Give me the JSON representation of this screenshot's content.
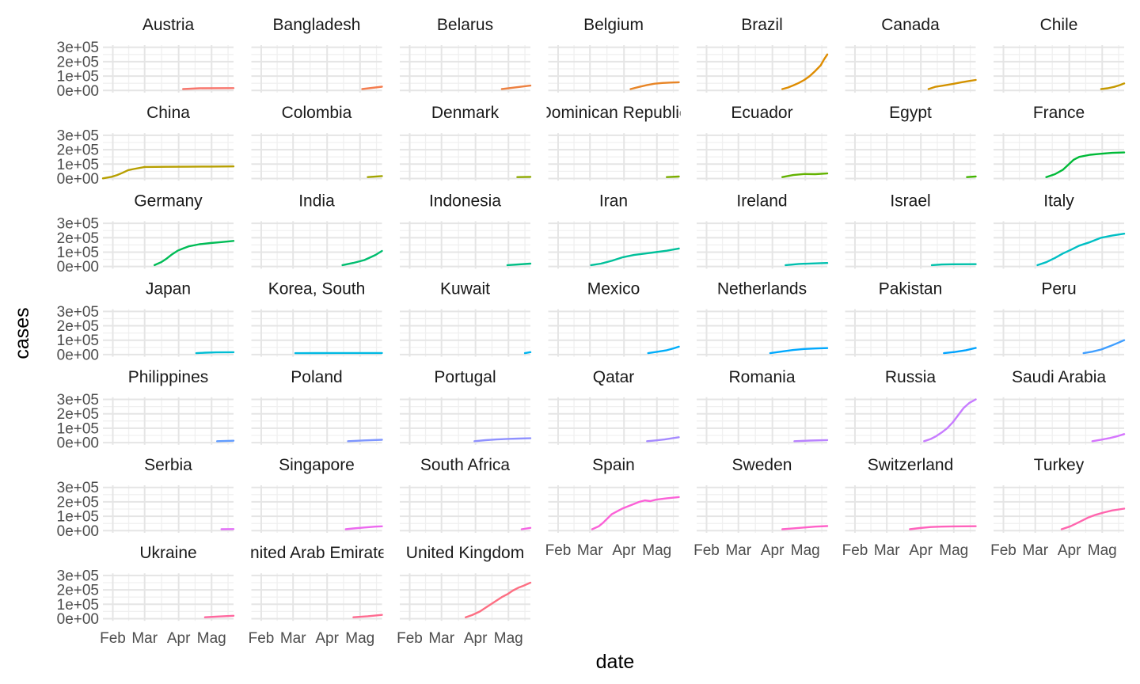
{
  "chart_data": {
    "type": "line",
    "layout": "facet_wrap",
    "xlabel": "date",
    "ylabel": "cases",
    "x_ticks": [
      "Feb",
      "Mar",
      "Apr",
      "Mag"
    ],
    "x_tick_days": [
      31,
      60,
      91,
      121
    ],
    "x_range_days": [
      22,
      141
    ],
    "y_ticks": [
      "0e+00",
      "1e+05",
      "2e+05",
      "3e+05"
    ],
    "y_tick_values": [
      0,
      100000,
      200000,
      300000
    ],
    "ylim": [
      -15000,
      315000
    ],
    "grid": true,
    "legend": "none",
    "x_units": "day-of-year 2020",
    "panels": [
      {
        "name": "Austria",
        "color": "#F8766D",
        "x": [
          95,
          110,
          141
        ],
        "y": [
          10000,
          15000,
          16500
        ]
      },
      {
        "name": "Bangladesh",
        "color": "#F47D4F",
        "x": [
          123,
          141
        ],
        "y": [
          10000,
          26000
        ]
      },
      {
        "name": "Belarus",
        "color": "#ED8141",
        "x": [
          115,
          141
        ],
        "y": [
          10000,
          34000
        ]
      },
      {
        "name": "Belgium",
        "color": "#E88526",
        "x": [
          97,
          105,
          112,
          119,
          126,
          133,
          141
        ],
        "y": [
          10000,
          25000,
          38000,
          47000,
          52000,
          55000,
          57000
        ]
      },
      {
        "name": "Brazil",
        "color": "#DE8C00",
        "x": [
          100,
          105,
          110,
          115,
          120,
          125,
          130,
          135,
          138,
          141
        ],
        "y": [
          10000,
          20000,
          35000,
          52000,
          73000,
          100000,
          135000,
          175000,
          215000,
          250000
        ]
      },
      {
        "name": "Canada",
        "color": "#D39200",
        "x": [
          98,
          104,
          112,
          120,
          128,
          135,
          141
        ],
        "y": [
          10000,
          25000,
          35000,
          45000,
          57000,
          66000,
          73000
        ]
      },
      {
        "name": "Chile",
        "color": "#C59900",
        "x": [
          120,
          126,
          132,
          137,
          141
        ],
        "y": [
          10000,
          15000,
          25000,
          37000,
          49000
        ]
      },
      {
        "name": "China",
        "color": "#B79F00",
        "x": [
          22,
          30,
          35,
          40,
          45,
          50,
          60,
          80,
          100,
          120,
          141
        ],
        "y": [
          1000,
          12000,
          24000,
          40000,
          58000,
          66000,
          80000,
          81000,
          82000,
          83000,
          84000
        ]
      },
      {
        "name": "Colombia",
        "color": "#A3A500",
        "x": [
          128,
          141
        ],
        "y": [
          10000,
          17000
        ]
      },
      {
        "name": "Denmark",
        "color": "#8FAA00",
        "x": [
          129,
          141
        ],
        "y": [
          10000,
          11200
        ]
      },
      {
        "name": "Dominican Republic",
        "color": "#7CAE00",
        "x": [
          130,
          141
        ],
        "y": [
          10000,
          13500
        ]
      },
      {
        "name": "Ecuador",
        "color": "#63B200",
        "x": [
          100,
          110,
          120,
          130,
          141
        ],
        "y": [
          10000,
          24000,
          31000,
          30000,
          35000
        ]
      },
      {
        "name": "Egypt",
        "color": "#43B600",
        "x": [
          133,
          141
        ],
        "y": [
          10000,
          14000
        ]
      },
      {
        "name": "France",
        "color": "#00BA38",
        "x": [
          70,
          78,
          85,
          90,
          95,
          100,
          110,
          120,
          130,
          141
        ],
        "y": [
          10000,
          30000,
          60000,
          95000,
          130000,
          150000,
          165000,
          172000,
          178000,
          181000
        ]
      },
      {
        "name": "Germany",
        "color": "#00BC56",
        "x": [
          69,
          75,
          80,
          85,
          90,
          95,
          100,
          110,
          120,
          130,
          141
        ],
        "y": [
          10000,
          30000,
          55000,
          85000,
          110000,
          125000,
          140000,
          155000,
          163000,
          170000,
          178000
        ]
      },
      {
        "name": "India",
        "color": "#00BD6F",
        "x": [
          105,
          115,
          125,
          135,
          141
        ],
        "y": [
          10000,
          25000,
          45000,
          80000,
          108000
        ]
      },
      {
        "name": "Indonesia",
        "color": "#00BF85",
        "x": [
          120,
          141
        ],
        "y": [
          10000,
          20000
        ]
      },
      {
        "name": "Iran",
        "color": "#00C09A",
        "x": [
          61,
          70,
          80,
          90,
          100,
          110,
          120,
          130,
          141
        ],
        "y": [
          10000,
          20000,
          40000,
          65000,
          80000,
          90000,
          100000,
          110000,
          125000
        ]
      },
      {
        "name": "Ireland",
        "color": "#00C0AF",
        "x": [
          103,
          115,
          125,
          135,
          141
        ],
        "y": [
          10000,
          18000,
          21000,
          23500,
          24500
        ]
      },
      {
        "name": "Israel",
        "color": "#00C1AA",
        "x": [
          101,
          110,
          120,
          141
        ],
        "y": [
          10000,
          14000,
          16000,
          16600
        ]
      },
      {
        "name": "Italy",
        "color": "#00BFC4",
        "x": [
          62,
          70,
          78,
          85,
          92,
          100,
          110,
          120,
          130,
          141
        ],
        "y": [
          10000,
          30000,
          60000,
          90000,
          115000,
          145000,
          170000,
          200000,
          215000,
          228000
        ]
      },
      {
        "name": "Japan",
        "color": "#00BDD4",
        "x": [
          107,
          115,
          125,
          141
        ],
        "y": [
          10000,
          13000,
          15500,
          16500
        ]
      },
      {
        "name": "Korea, South",
        "color": "#00B9E3",
        "x": [
          62,
          80,
          100,
          120,
          141
        ],
        "y": [
          10000,
          10500,
          10900,
          11000,
          11100
        ]
      },
      {
        "name": "Kuwait",
        "color": "#00B4EF",
        "x": [
          136,
          141
        ],
        "y": [
          10000,
          17000
        ]
      },
      {
        "name": "Mexico",
        "color": "#00AEFA",
        "x": [
          113,
          122,
          130,
          136,
          141
        ],
        "y": [
          10000,
          20000,
          30000,
          43000,
          55000
        ]
      },
      {
        "name": "Netherlands",
        "color": "#00A9FF",
        "x": [
          89,
          100,
          110,
          120,
          130,
          141
        ],
        "y": [
          10000,
          22000,
          32000,
          39000,
          42000,
          45000
        ]
      },
      {
        "name": "Pakistan",
        "color": "#00A3FF",
        "x": [
          112,
          122,
          132,
          141
        ],
        "y": [
          10000,
          18000,
          30000,
          46000
        ]
      },
      {
        "name": "Peru",
        "color": "#3F9EFF",
        "x": [
          104,
          112,
          120,
          128,
          135,
          141
        ],
        "y": [
          10000,
          20000,
          35000,
          58000,
          80000,
          100000
        ]
      },
      {
        "name": "Philippines",
        "color": "#619CFF",
        "x": [
          126,
          141
        ],
        "y": [
          10000,
          13000
        ]
      },
      {
        "name": "Poland",
        "color": "#7E96FF",
        "x": [
          110,
          125,
          141
        ],
        "y": [
          10000,
          15000,
          19500
        ]
      },
      {
        "name": "Portugal",
        "color": "#8F91FF",
        "x": [
          90,
          100,
          110,
          120,
          130,
          141
        ],
        "y": [
          10000,
          17000,
          22000,
          25500,
          28000,
          30000
        ]
      },
      {
        "name": "Qatar",
        "color": "#A58AFF",
        "x": [
          112,
          120,
          128,
          135,
          141
        ],
        "y": [
          10000,
          15000,
          22000,
          30000,
          37000
        ]
      },
      {
        "name": "Romania",
        "color": "#B983FF",
        "x": [
          111,
          125,
          141
        ],
        "y": [
          10000,
          14000,
          17500
        ]
      },
      {
        "name": "Russia",
        "color": "#C77CFF",
        "x": [
          94,
          100,
          105,
          110,
          115,
          120,
          125,
          130,
          135,
          141
        ],
        "y": [
          10000,
          25000,
          45000,
          70000,
          100000,
          140000,
          190000,
          240000,
          275000,
          300000
        ]
      },
      {
        "name": "Saudi Arabia",
        "color": "#D575FE",
        "x": [
          112,
          120,
          128,
          135,
          141
        ],
        "y": [
          10000,
          20000,
          32000,
          45000,
          59000
        ]
      },
      {
        "name": "Serbia",
        "color": "#E26EF7",
        "x": [
          130,
          141
        ],
        "y": [
          10000,
          11000
        ]
      },
      {
        "name": "Singapore",
        "color": "#EC69EF",
        "x": [
          108,
          115,
          125,
          135,
          141
        ],
        "y": [
          10000,
          15000,
          22000,
          28000,
          30000
        ]
      },
      {
        "name": "South Africa",
        "color": "#F564E3",
        "x": [
          133,
          141
        ],
        "y": [
          10000,
          19000
        ]
      },
      {
        "name": "Spain",
        "color": "#FB61D7",
        "x": [
          62,
          68,
          72,
          76,
          80,
          85,
          90,
          95,
          100,
          105,
          110,
          115,
          120,
          130,
          141
        ],
        "y": [
          10000,
          30000,
          55000,
          85000,
          115000,
          135000,
          155000,
          170000,
          185000,
          200000,
          210000,
          205000,
          215000,
          225000,
          233000
        ]
      },
      {
        "name": "Sweden",
        "color": "#FF61C9",
        "x": [
          100,
          110,
          120,
          130,
          141
        ],
        "y": [
          10000,
          16000,
          22000,
          28000,
          32000
        ]
      },
      {
        "name": "Switzerland",
        "color": "#FF62BC",
        "x": [
          81,
          90,
          100,
          110,
          120,
          130,
          141
        ],
        "y": [
          10000,
          18000,
          25000,
          28000,
          29500,
          30300,
          30700
        ]
      },
      {
        "name": "Turkey",
        "color": "#FF65AE",
        "x": [
          84,
          92,
          100,
          108,
          115,
          122,
          130,
          141
        ],
        "y": [
          10000,
          30000,
          60000,
          90000,
          110000,
          125000,
          140000,
          153000
        ]
      },
      {
        "name": "Ukraine",
        "color": "#FF689F",
        "x": [
          115,
          128,
          141
        ],
        "y": [
          10000,
          15000,
          20000
        ]
      },
      {
        "name": "United Arab Emirates",
        "color": "#FF6C91",
        "x": [
          115,
          128,
          141
        ],
        "y": [
          10000,
          17000,
          26000
        ]
      },
      {
        "name": "United Kingdom",
        "color": "#FD6F83",
        "x": [
          82,
          88,
          95,
          100,
          105,
          110,
          115,
          120,
          125,
          130,
          135,
          141
        ],
        "y": [
          10000,
          25000,
          50000,
          75000,
          100000,
          125000,
          150000,
          170000,
          195000,
          215000,
          230000,
          250000
        ]
      }
    ]
  }
}
